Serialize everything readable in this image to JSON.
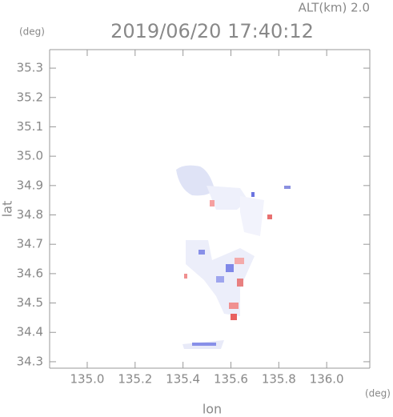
{
  "chart_data": {
    "type": "map",
    "title": "2019/06/20 17:40:12",
    "annotation": "ALT(km) 2.0",
    "y_unit": "(deg)",
    "x_unit": "(deg)",
    "xlabel": "lon",
    "ylabel": "lat",
    "xlim": [
      134.843,
      136.18
    ],
    "ylim": [
      34.278,
      35.363
    ],
    "xticks": [
      {
        "value": 135.0,
        "label": "135.0"
      },
      135.2,
      135.4,
      135.6,
      135.8,
      {
        "value": 136.0,
        "label": "136.0"
      }
    ],
    "yticks": [
      {
        "value": 34.3,
        "label": "34.3"
      },
      34.4,
      34.5,
      34.6,
      34.7,
      34.8,
      34.9,
      {
        "value": 35.0,
        "label": "35.0"
      },
      35.1,
      35.2,
      35.3
    ]
  }
}
